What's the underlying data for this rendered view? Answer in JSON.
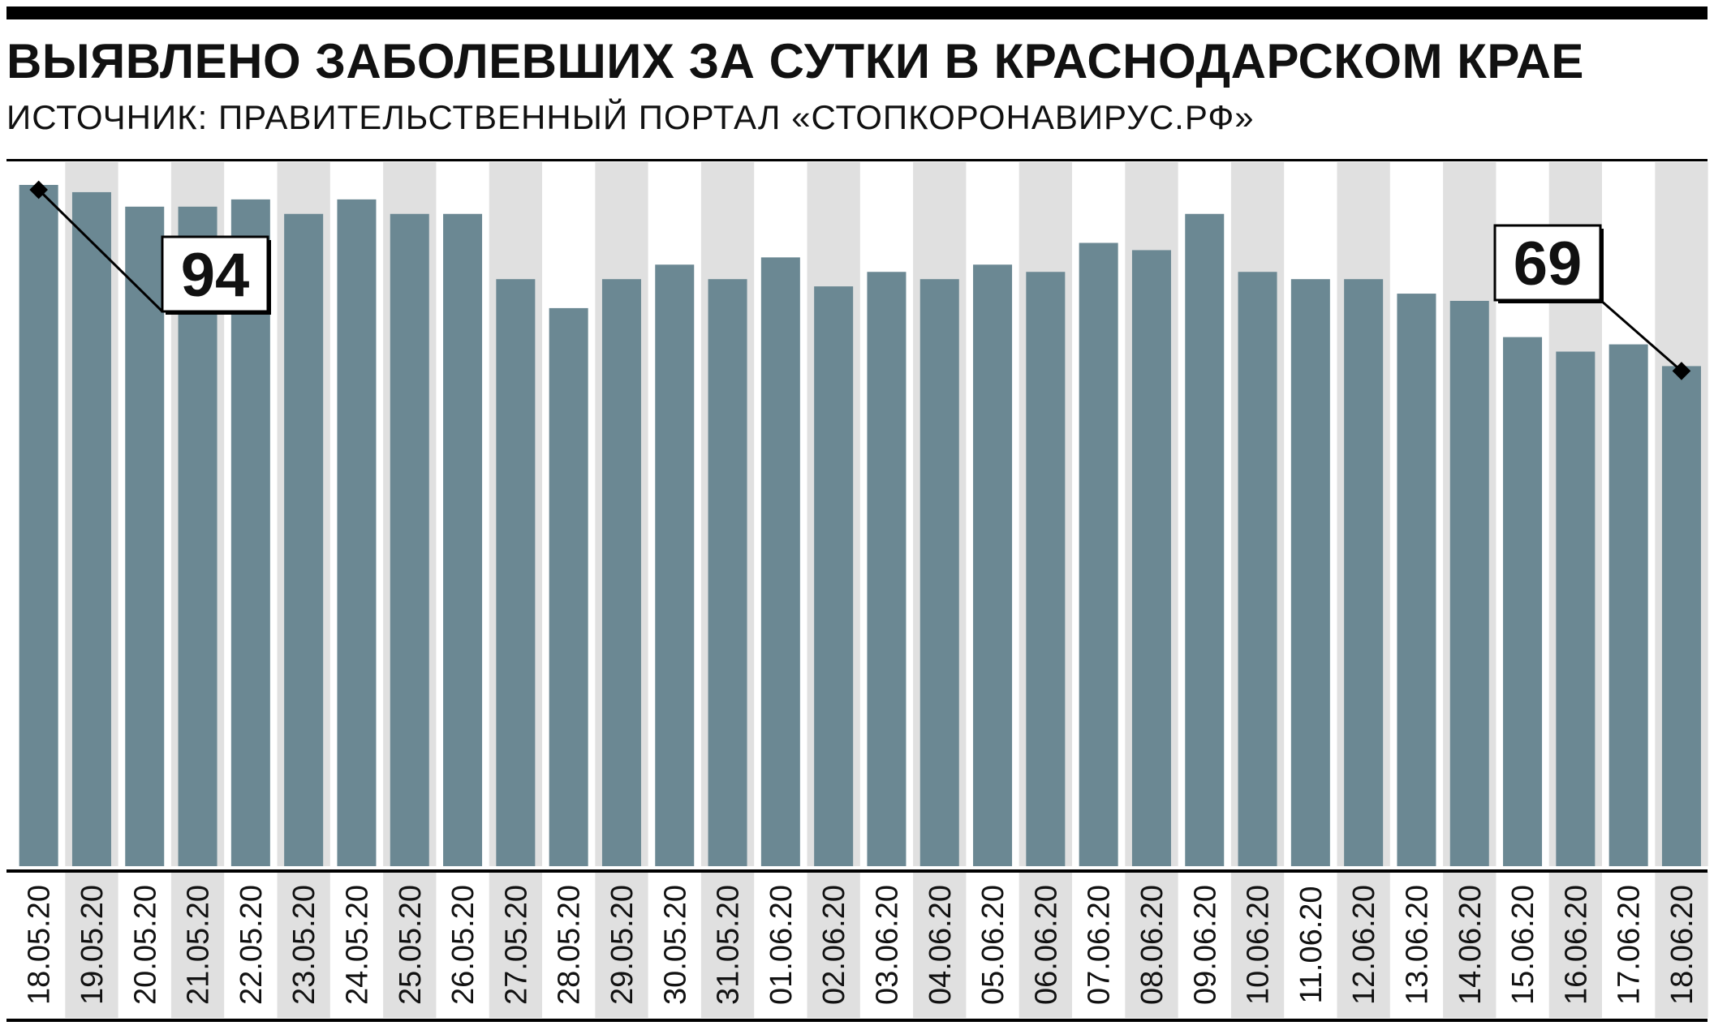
{
  "header": {
    "title_prefix": "ВЫЯВЛЕНО ЗАБОЛЕВШИХ ЗА СУТКИ В ",
    "title_highlight": "КРАСНОДАРСКОМ КРАЕ",
    "source": "ИСТОЧНИК: ПРАВИТЕЛЬСТВЕННЫЙ ПОРТАЛ «СТОПКОРОНАВИРУС.РФ»"
  },
  "colors": {
    "bar": "#6b8893",
    "band": "#e0e0e0",
    "rule": "#000000"
  },
  "chart_data": {
    "type": "bar",
    "title": "ВЫЯВЛЕНО ЗАБОЛЕВШИХ ЗА СУТКИ В КРАСНОДАРСКОМ КРАЕ",
    "subtitle": "ИСТОЧНИК: ПРАВИТЕЛЬСТВЕННЫЙ ПОРТАЛ «СТОПКОРОНАВИРУС.РФ»",
    "xlabel": "",
    "ylabel": "",
    "grid": false,
    "legend": "none",
    "ylim": [
      0,
      94
    ],
    "categories": [
      "18.05.20",
      "19.05.20",
      "20.05.20",
      "21.05.20",
      "22.05.20",
      "23.05.20",
      "24.05.20",
      "25.05.20",
      "26.05.20",
      "27.05.20",
      "28.05.20",
      "29.05.20",
      "30.05.20",
      "31.05.20",
      "01.06.20",
      "02.06.20",
      "03.06.20",
      "04.06.20",
      "05.06.20",
      "06.06.20",
      "07.06.20",
      "08.06.20",
      "09.06.20",
      "10.06.20",
      "11.06.20",
      "12.06.20",
      "13.06.20",
      "14.06.20",
      "15.06.20",
      "16.06.20",
      "17.06.20",
      "18.06.20"
    ],
    "values": [
      94,
      93,
      91,
      91,
      92,
      90,
      92,
      90,
      90,
      81,
      77,
      81,
      83,
      81,
      84,
      80,
      82,
      81,
      83,
      82,
      86,
      85,
      90,
      82,
      81,
      81,
      79,
      78,
      73,
      71,
      72,
      69
    ],
    "annotations": [
      {
        "index": 0,
        "label": "94"
      },
      {
        "index": 31,
        "label": "69"
      }
    ]
  }
}
